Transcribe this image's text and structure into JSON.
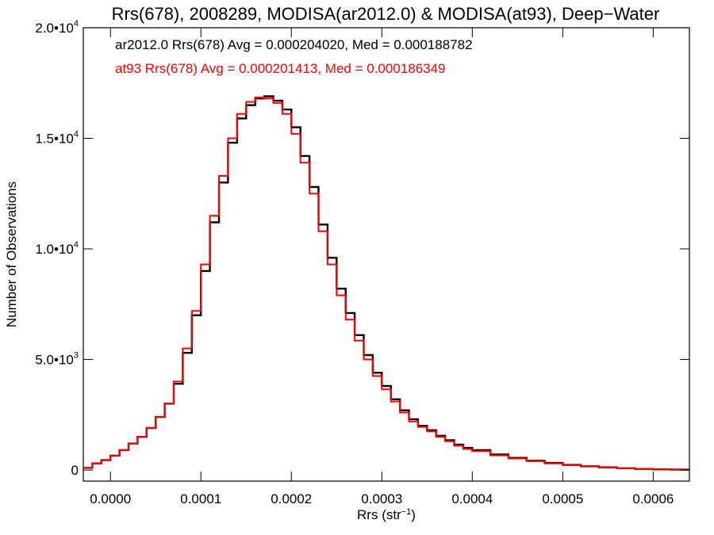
{
  "chart_data": {
    "type": "line",
    "title": "Rrs(678), 2008289, MODISA(ar2012.0) & MODISA(at93), Deep−Water",
    "xlabel": "Rrs (str",
    "xlabel_sup": "−1",
    "xlabel_tail": ")",
    "ylabel": "Number of Observations",
    "xlim": [
      -3e-05,
      0.00064
    ],
    "ylim": [
      -500,
      20000
    ],
    "xticks": [
      {
        "value": 0.0,
        "label": "0.0000"
      },
      {
        "value": 0.0001,
        "label": "0.0001"
      },
      {
        "value": 0.0002,
        "label": "0.0002"
      },
      {
        "value": 0.0003,
        "label": "0.0003"
      },
      {
        "value": 0.0004,
        "label": "0.0004"
      },
      {
        "value": 0.0005,
        "label": "0.0005"
      },
      {
        "value": 0.0006,
        "label": "0.0006"
      }
    ],
    "yticks": [
      {
        "value": 0,
        "mant": "0",
        "exp": ""
      },
      {
        "value": 5000,
        "mant": "5.0•10",
        "exp": "3"
      },
      {
        "value": 10000,
        "mant": "1.0•10",
        "exp": "4"
      },
      {
        "value": 15000,
        "mant": "1.5•10",
        "exp": "4"
      },
      {
        "value": 20000,
        "mant": "2.0•10",
        "exp": "4"
      }
    ],
    "grid": false,
    "annotations": [
      "ar2012.0 Rrs(678) Avg = 0.000204020, Med = 0.000188782",
      "at93 Rrs(678) Avg = 0.000201413, Med = 0.000186349"
    ],
    "series": [
      {
        "color": "#000000",
        "x": [
          -3e-05,
          -2e-05,
          -1e-05,
          0.0,
          1e-05,
          2e-05,
          3e-05,
          4e-05,
          5e-05,
          6e-05,
          7e-05,
          8e-05,
          9e-05,
          0.0001,
          0.00011,
          0.00012,
          0.00013,
          0.00014,
          0.00015,
          0.00016,
          0.00017,
          0.00018,
          0.00019,
          0.0002,
          0.00021,
          0.00022,
          0.00023,
          0.00024,
          0.00025,
          0.00026,
          0.00027,
          0.00028,
          0.00029,
          0.0003,
          0.00031,
          0.00032,
          0.00033,
          0.00034,
          0.00035,
          0.00036,
          0.00037,
          0.00038,
          0.00039,
          0.0004,
          0.00042,
          0.00044,
          0.00046,
          0.00048,
          0.0005,
          0.00052,
          0.00054,
          0.00056,
          0.00058,
          0.0006,
          0.00062,
          0.00064
        ],
        "y": [
          100,
          300,
          450,
          650,
          900,
          1200,
          1500,
          1900,
          2400,
          3000,
          3900,
          5300,
          7000,
          9000,
          11200,
          13000,
          14800,
          15900,
          16500,
          16800,
          16900,
          16700,
          16300,
          15500,
          14200,
          12800,
          11100,
          9600,
          8200,
          7100,
          6100,
          5200,
          4400,
          3800,
          3200,
          2700,
          2300,
          2000,
          1800,
          1550,
          1350,
          1150,
          1000,
          900,
          700,
          550,
          420,
          320,
          230,
          170,
          120,
          80,
          50,
          30,
          20,
          10
        ]
      },
      {
        "color": "#ff0000",
        "x": [
          -3e-05,
          -2e-05,
          -1e-05,
          0.0,
          1e-05,
          2e-05,
          3e-05,
          4e-05,
          5e-05,
          6e-05,
          7e-05,
          8e-05,
          9e-05,
          0.0001,
          0.00011,
          0.00012,
          0.00013,
          0.00014,
          0.00015,
          0.00016,
          0.00017,
          0.00018,
          0.00019,
          0.0002,
          0.00021,
          0.00022,
          0.00023,
          0.00024,
          0.00025,
          0.00026,
          0.00027,
          0.00028,
          0.00029,
          0.0003,
          0.00031,
          0.00032,
          0.00033,
          0.00034,
          0.00035,
          0.00036,
          0.00037,
          0.00038,
          0.00039,
          0.0004,
          0.00042,
          0.00044,
          0.00046,
          0.00048,
          0.0005,
          0.00052,
          0.00054,
          0.00056,
          0.00058,
          0.0006,
          0.00062,
          0.00064
        ],
        "y": [
          100,
          300,
          450,
          650,
          900,
          1200,
          1500,
          1900,
          2400,
          3000,
          4000,
          5500,
          7200,
          9300,
          11500,
          13300,
          15000,
          16100,
          16650,
          16850,
          16800,
          16600,
          16100,
          15200,
          13900,
          12500,
          10800,
          9300,
          7900,
          6800,
          5850,
          5000,
          4250,
          3650,
          3100,
          2600,
          2200,
          1950,
          1750,
          1500,
          1300,
          1100,
          950,
          850,
          660,
          520,
          400,
          300,
          220,
          160,
          110,
          75,
          45,
          28,
          18,
          8
        ]
      }
    ]
  }
}
